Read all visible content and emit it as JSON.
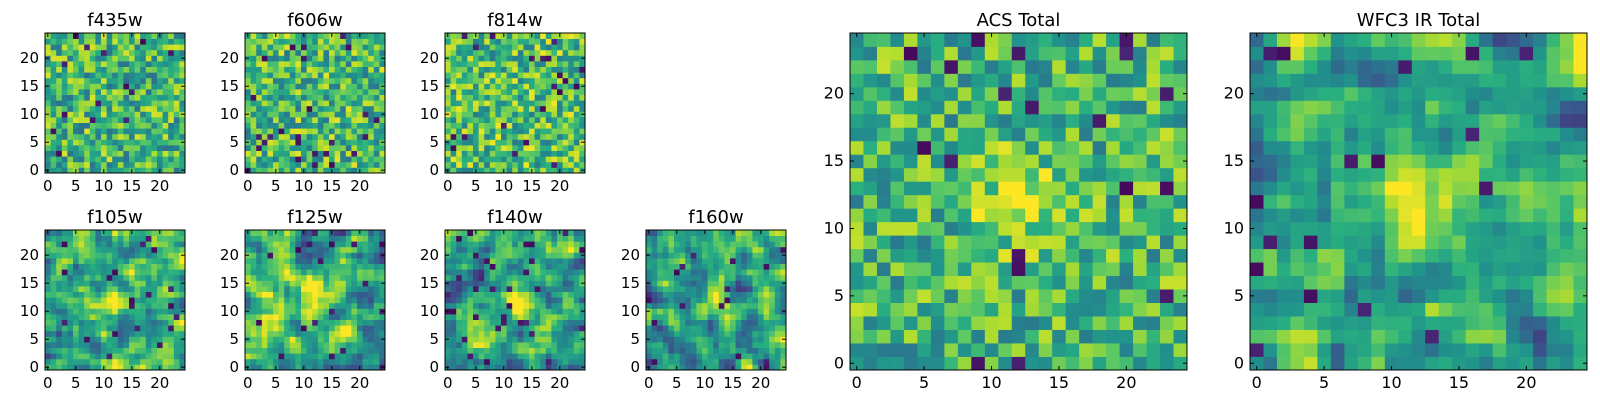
{
  "colormap": "viridis",
  "colors": {
    "background": "#ffffff",
    "axes_edge": "#000000",
    "viridis_low": "#440154",
    "viridis_mid": "#21918c",
    "viridis_high": "#fde725"
  },
  "chart_data": [
    {
      "type": "heatmap",
      "title": "f435w",
      "grid_size": [
        25,
        25
      ],
      "xlim": [
        0,
        24
      ],
      "ylim": [
        0,
        24
      ],
      "xticks": [
        0,
        5,
        10,
        15,
        20
      ],
      "yticks": [
        0,
        5,
        10,
        15,
        20
      ],
      "source_center": null,
      "seed": 11,
      "smooth": 0,
      "bias": 0.66,
      "noise": 0.22
    },
    {
      "type": "heatmap",
      "title": "f606w",
      "grid_size": [
        25,
        25
      ],
      "xlim": [
        0,
        24
      ],
      "ylim": [
        0,
        24
      ],
      "xticks": [
        0,
        5,
        10,
        15,
        20
      ],
      "yticks": [
        0,
        5,
        10,
        15,
        20
      ],
      "source_center": null,
      "seed": 23,
      "smooth": 0,
      "bias": 0.68,
      "noise": 0.22
    },
    {
      "type": "heatmap",
      "title": "f814w",
      "grid_size": [
        25,
        25
      ],
      "xlim": [
        0,
        24
      ],
      "ylim": [
        0,
        24
      ],
      "xticks": [
        0,
        5,
        10,
        15,
        20
      ],
      "yticks": [
        0,
        5,
        10,
        15,
        20
      ],
      "source_center": null,
      "seed": 37,
      "smooth": 0,
      "bias": 0.7,
      "noise": 0.22
    },
    {
      "type": "heatmap",
      "title": "f105w",
      "grid_size": [
        25,
        25
      ],
      "xlim": [
        0,
        24
      ],
      "ylim": [
        0,
        24
      ],
      "xticks": [
        0,
        5,
        10,
        15,
        20
      ],
      "yticks": [
        0,
        5,
        10,
        15,
        20
      ],
      "source_center": [
        12,
        12
      ],
      "seed": 41,
      "smooth": 1,
      "bias": 0.62,
      "noise": 0.26
    },
    {
      "type": "heatmap",
      "title": "f125w",
      "grid_size": [
        25,
        25
      ],
      "xlim": [
        0,
        24
      ],
      "ylim": [
        0,
        24
      ],
      "xticks": [
        0,
        5,
        10,
        15,
        20
      ],
      "yticks": [
        0,
        5,
        10,
        15,
        20
      ],
      "source_center": [
        12,
        12
      ],
      "seed": 53,
      "smooth": 1,
      "bias": 0.64,
      "noise": 0.26
    },
    {
      "type": "heatmap",
      "title": "f140w",
      "grid_size": [
        25,
        25
      ],
      "xlim": [
        0,
        24
      ],
      "ylim": [
        0,
        24
      ],
      "xticks": [
        0,
        5,
        10,
        15,
        20
      ],
      "yticks": [
        0,
        5,
        10,
        15,
        20
      ],
      "source_center": [
        12,
        12
      ],
      "seed": 67,
      "smooth": 1,
      "bias": 0.6,
      "noise": 0.26
    },
    {
      "type": "heatmap",
      "title": "f160w",
      "grid_size": [
        25,
        25
      ],
      "xlim": [
        0,
        24
      ],
      "ylim": [
        0,
        24
      ],
      "xticks": [
        0,
        5,
        10,
        15,
        20
      ],
      "yticks": [
        0,
        5,
        10,
        15,
        20
      ],
      "source_center": [
        12,
        12
      ],
      "seed": 79,
      "smooth": 1,
      "bias": 0.58,
      "noise": 0.26
    },
    {
      "type": "heatmap",
      "title": "ACS Total",
      "grid_size": [
        25,
        25
      ],
      "xlim": [
        0,
        24
      ],
      "ylim": [
        0,
        24
      ],
      "xticks": [
        0,
        5,
        10,
        15,
        20
      ],
      "yticks": [
        0,
        5,
        10,
        15,
        20
      ],
      "source_center": [
        12,
        12
      ],
      "seed": 97,
      "smooth": 0,
      "bias": 0.66,
      "noise": 0.2
    },
    {
      "type": "heatmap",
      "title": "WFC3 IR Total",
      "grid_size": [
        25,
        25
      ],
      "xlim": [
        0,
        24
      ],
      "ylim": [
        0,
        24
      ],
      "xticks": [
        0,
        5,
        10,
        15,
        20
      ],
      "yticks": [
        0,
        5,
        10,
        15,
        20
      ],
      "source_center": [
        12,
        12
      ],
      "seed": 113,
      "smooth": 1,
      "bias": 0.6,
      "noise": 0.24
    }
  ]
}
